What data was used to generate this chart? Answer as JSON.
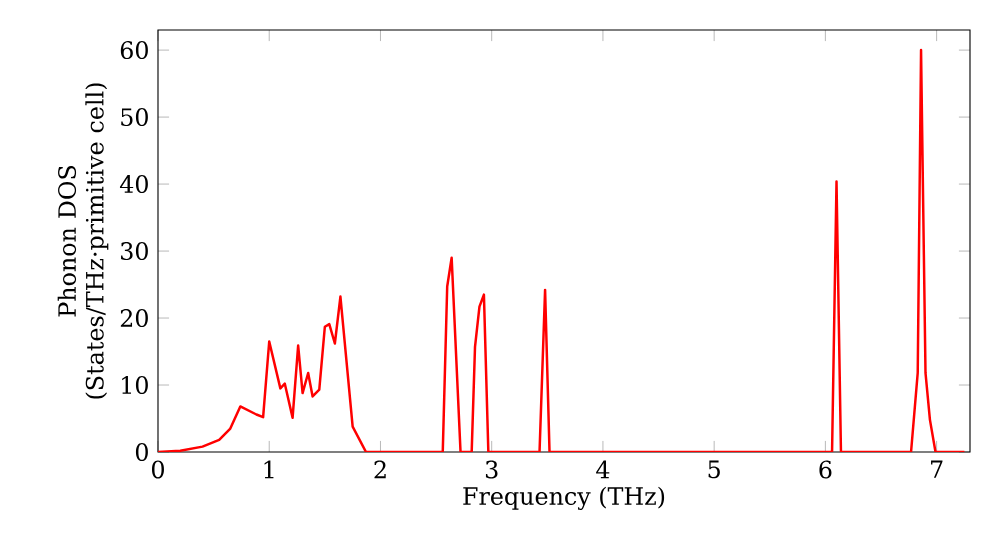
{
  "chart_data": {
    "type": "line",
    "xlabel": "Frequency (THz)",
    "ylabel": "Phonon DOS (States/THz·primitive cell)",
    "x": [
      0,
      0.2,
      0.4,
      0.55,
      0.65,
      0.74,
      0.885,
      0.945,
      1.0,
      1.1,
      1.14,
      1.21,
      1.26,
      1.3,
      1.35,
      1.39,
      1.45,
      1.5,
      1.54,
      1.59,
      1.64,
      1.75,
      1.87,
      2.56,
      2.6,
      2.64,
      2.72,
      2.82,
      2.85,
      2.89,
      2.93,
      2.97,
      3.43,
      3.48,
      3.52,
      6.06,
      6.1,
      6.14,
      6.77,
      6.83,
      6.86,
      6.9,
      6.94,
      6.99,
      7.25
    ],
    "values": [
      0,
      0.2,
      0.8,
      1.8,
      3.5,
      6.8,
      5.6,
      5.2,
      16.5,
      9.5,
      10.2,
      5.1,
      15.9,
      8.8,
      11.8,
      8.3,
      9.3,
      18.7,
      19.1,
      16.2,
      23.2,
      3.8,
      0,
      0,
      24.7,
      29,
      0,
      0,
      15.7,
      21.7,
      23.5,
      0,
      0,
      24.2,
      0,
      0,
      40.4,
      0,
      0,
      11.8,
      60,
      11.8,
      4.8,
      0,
      0
    ],
    "color": "#ff0000",
    "xlim": [
      0,
      7.3
    ],
    "ylim": [
      0,
      63
    ],
    "xticks": [
      0,
      1,
      2,
      3,
      4,
      5,
      6,
      7
    ],
    "yticks": [
      0,
      10,
      20,
      30,
      40,
      50,
      60
    ]
  }
}
